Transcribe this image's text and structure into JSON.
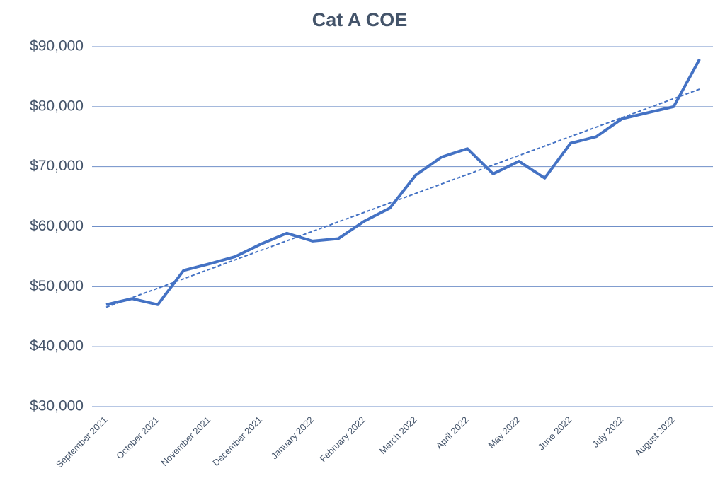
{
  "chart_data": {
    "type": "line",
    "title": "Cat A COE",
    "categories": [
      "September 2021",
      null,
      "October 2021",
      null,
      "November 2021",
      null,
      "December 2021",
      null,
      "January 2022",
      null,
      "February 2022",
      null,
      "March 2022",
      null,
      "April 2022",
      null,
      "May 2022",
      null,
      "June 2022",
      null,
      "July 2022",
      null,
      "August 2022",
      null
    ],
    "series": [
      {
        "name": "Cat A COE",
        "color": "#4472c4",
        "values": [
          47000,
          48000,
          47000,
          52700,
          53800,
          55000,
          57100,
          58900,
          57600,
          58000,
          60900,
          63100,
          68600,
          71600,
          73000,
          68800,
          70900,
          68100,
          73900,
          75000,
          78000,
          79000,
          80000,
          87900
        ]
      }
    ],
    "ylim": [
      30000,
      90000
    ],
    "yticks": [
      {
        "value": 30000,
        "label": "$30,000"
      },
      {
        "value": 40000,
        "label": "$40,000"
      },
      {
        "value": 50000,
        "label": "$50,000"
      },
      {
        "value": 60000,
        "label": "$60,000"
      },
      {
        "value": 70000,
        "label": "$70,000"
      },
      {
        "value": 80000,
        "label": "$80,000"
      },
      {
        "value": 90000,
        "label": "$90,000"
      }
    ],
    "grid": true,
    "trendline": "linear"
  }
}
